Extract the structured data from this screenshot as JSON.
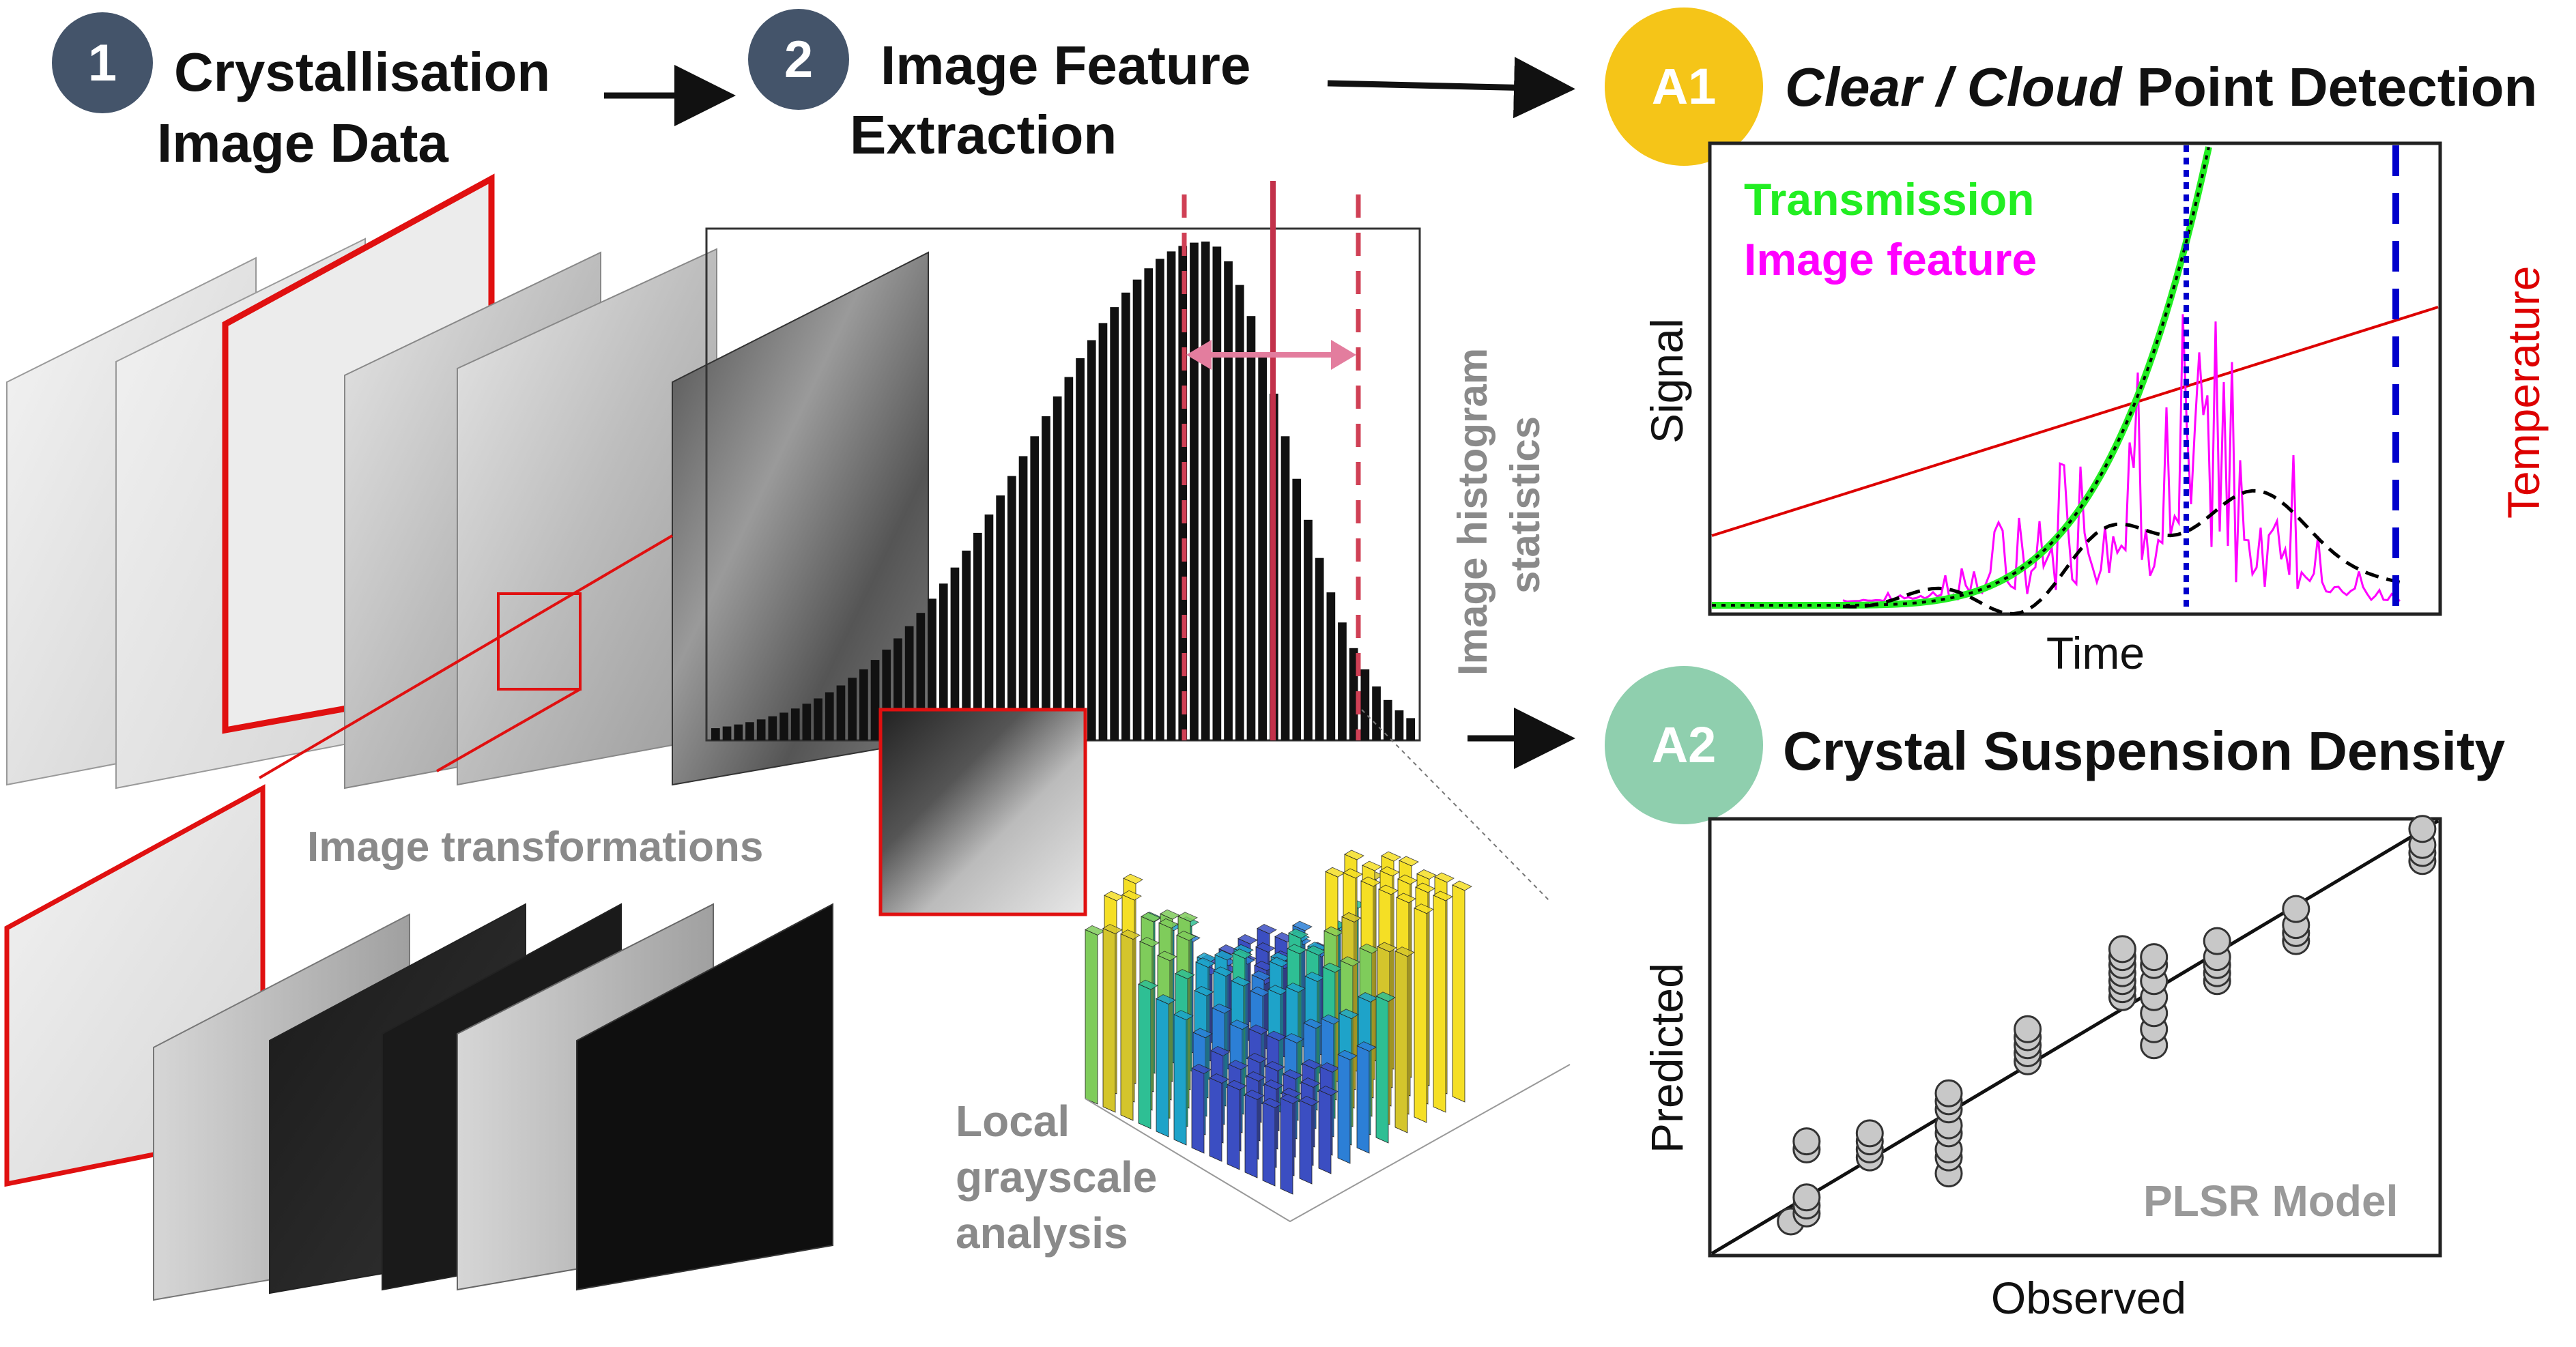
{
  "steps": {
    "step1": {
      "number": "1",
      "line1": "Crystallisation",
      "line2": "Image Data",
      "color": "#44546a"
    },
    "step2": {
      "number": "2",
      "line1": "Image Feature",
      "line2": "Extraction",
      "color": "#44546a"
    },
    "a1": {
      "badge": "A1",
      "title_italic": "Clear / Cloud",
      "title_rest": " Point Detection",
      "color": "#f5c518"
    },
    "a2": {
      "badge": "A2",
      "title": "Crystal Suspension Density",
      "color": "#8fcfae"
    }
  },
  "labels": {
    "histogram_stats_line1": "Image histogram",
    "histogram_stats_line2": "statistics",
    "image_transformations": "Image transformations",
    "local_line1": "Local",
    "local_line2": "grayscale",
    "local_line3": "analysis"
  },
  "chart_data": [
    {
      "type": "line",
      "panel": "A1",
      "xlabel": "Time",
      "ylabel": "Signal",
      "y2label": "Temperature",
      "legend": [
        "Transmission",
        "Image feature"
      ],
      "colors": {
        "transmission": "#22ee22",
        "image_feature": "#ff00ff",
        "temperature": "#dd0000",
        "smoothed": "#000000",
        "clear_cloud_points": "#0000cc"
      },
      "grid": false
    },
    {
      "type": "scatter",
      "panel": "A2",
      "xlabel": "Observed",
      "ylabel": "Predicted",
      "annotation": "PLSR Model",
      "x": [
        0.5,
        0.6,
        0.6,
        0.6,
        0.6,
        0.6,
        1.0,
        1.0,
        1.0,
        1.0,
        1.5,
        1.5,
        1.5,
        1.5,
        1.5,
        1.5,
        1.5,
        1.5,
        2.0,
        2.0,
        2.0,
        2.0,
        2.0,
        2.6,
        2.6,
        2.6,
        2.6,
        2.6,
        2.6,
        2.6,
        2.8,
        2.8,
        2.8,
        2.8,
        2.8,
        2.8,
        2.8,
        3.2,
        3.2,
        3.2,
        3.2,
        3.2,
        3.7,
        3.7,
        3.7,
        3.7,
        4.5,
        4.5,
        4.5,
        4.5
      ],
      "y": [
        0.4,
        0.5,
        0.6,
        0.7,
        1.3,
        1.4,
        1.2,
        1.3,
        1.4,
        1.5,
        1.0,
        1.2,
        1.3,
        1.5,
        1.6,
        1.8,
        1.9,
        2.0,
        2.4,
        2.5,
        2.6,
        2.7,
        2.8,
        3.2,
        3.3,
        3.4,
        3.5,
        3.6,
        3.7,
        3.8,
        2.6,
        2.8,
        3.0,
        3.2,
        3.4,
        3.6,
        3.7,
        3.4,
        3.5,
        3.6,
        3.7,
        3.9,
        3.9,
        4.0,
        4.1,
        4.3,
        4.9,
        5.0,
        5.1,
        5.3
      ],
      "xlim": [
        0,
        4.6
      ],
      "ylim": [
        0,
        5.4
      ],
      "fit_line": {
        "x": [
          0,
          4.6
        ],
        "y": [
          0,
          5.4
        ]
      }
    }
  ]
}
